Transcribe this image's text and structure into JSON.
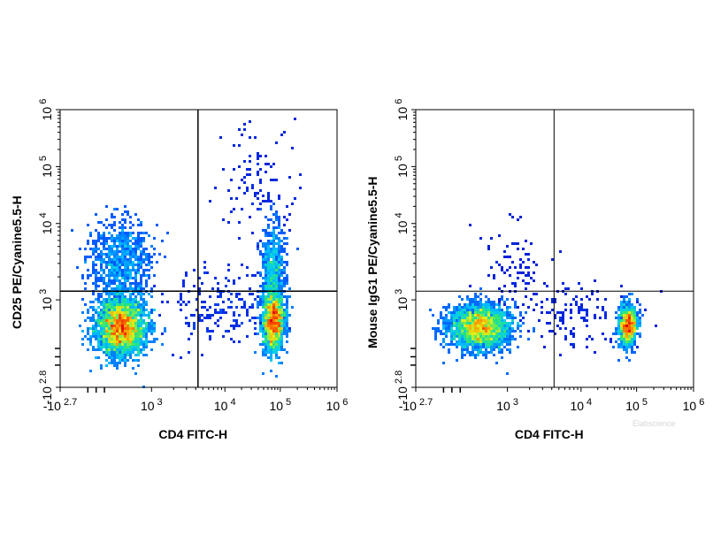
{
  "chart_data": [
    {
      "type": "scatter",
      "subtype": "flow-cytometry-density-plot",
      "xlabel": "CD4 FITC-H",
      "ylabel": "CD25 PE/Cyanine5.5-H",
      "x_scale": "biexponential",
      "y_scale": "biexponential",
      "xlim": [
        -500,
        1000000
      ],
      "ylim": [
        -630,
        1000000
      ],
      "x_ticks": [
        {
          "base": "-10",
          "exp": "2.7",
          "value": -500
        },
        {
          "base": "10",
          "exp": "3",
          "value": 1000
        },
        {
          "base": "10",
          "exp": "4",
          "value": 10000
        },
        {
          "base": "10",
          "exp": "5",
          "value": 100000
        },
        {
          "base": "10",
          "exp": "6",
          "value": 1000000
        }
      ],
      "y_ticks": [
        {
          "base": "-10",
          "exp": "2.8",
          "value": -630
        },
        {
          "base": "10",
          "exp": "3",
          "value": 1000
        },
        {
          "base": "10",
          "exp": "4",
          "value": 10000
        },
        {
          "base": "10",
          "exp": "5",
          "value": 100000
        },
        {
          "base": "10",
          "exp": "6",
          "value": 1000000
        }
      ],
      "quadrant_gate": {
        "x": 4300,
        "y": 1300
      },
      "populations": [
        {
          "x": 500,
          "y": 500,
          "spread_x": 0.25,
          "spread_y": 0.28,
          "count": 2600,
          "intensity": 1.0
        },
        {
          "x": 500,
          "y": 3000,
          "spread_x": 0.3,
          "spread_y": 0.45,
          "count": 900,
          "intensity": 0.55
        },
        {
          "x": 75000,
          "y": 600,
          "spread_x": 0.11,
          "spread_y": 0.3,
          "count": 1500,
          "intensity": 0.95
        },
        {
          "x": 75000,
          "y": 2500,
          "spread_x": 0.11,
          "spread_y": 0.45,
          "count": 700,
          "intensity": 0.55
        },
        {
          "x": 8000,
          "y": 900,
          "spread_x": 0.6,
          "spread_y": 0.35,
          "count": 220,
          "intensity": 0.12
        },
        {
          "x": 40000,
          "y": 60000,
          "spread_x": 0.4,
          "spread_y": 0.6,
          "count": 110,
          "intensity": 0.08
        }
      ],
      "grid": false
    },
    {
      "type": "scatter",
      "subtype": "flow-cytometry-density-plot",
      "xlabel": "CD4 FITC-H",
      "ylabel": "Mouse IgG1 PE/Cyanine5.5-H",
      "x_scale": "biexponential",
      "y_scale": "biexponential",
      "xlim": [
        -500,
        1000000
      ],
      "ylim": [
        -630,
        1000000
      ],
      "x_ticks": [
        {
          "base": "-10",
          "exp": "2.7",
          "value": -500
        },
        {
          "base": "10",
          "exp": "3",
          "value": 1000
        },
        {
          "base": "10",
          "exp": "4",
          "value": 10000
        },
        {
          "base": "10",
          "exp": "5",
          "value": 100000
        },
        {
          "base": "10",
          "exp": "6",
          "value": 1000000
        }
      ],
      "y_ticks": [
        {
          "base": "-10",
          "exp": "2.8",
          "value": -630
        },
        {
          "base": "10",
          "exp": "3",
          "value": 1000
        },
        {
          "base": "10",
          "exp": "4",
          "value": 10000
        },
        {
          "base": "10",
          "exp": "5",
          "value": 100000
        },
        {
          "base": "10",
          "exp": "6",
          "value": 1000000
        }
      ],
      "quadrant_gate": {
        "x": 4300,
        "y": 1300
      },
      "populations": [
        {
          "x": 550,
          "y": 500,
          "spread_x": 0.3,
          "spread_y": 0.22,
          "count": 2600,
          "intensity": 1.0
        },
        {
          "x": 70000,
          "y": 520,
          "spread_x": 0.09,
          "spread_y": 0.2,
          "count": 1300,
          "intensity": 0.9
        },
        {
          "x": 8000,
          "y": 700,
          "spread_x": 0.55,
          "spread_y": 0.3,
          "count": 140,
          "intensity": 0.1
        },
        {
          "x": 1200,
          "y": 2500,
          "spread_x": 0.35,
          "spread_y": 0.45,
          "count": 90,
          "intensity": 0.08
        }
      ],
      "grid": false
    }
  ],
  "watermark": "Elabscience"
}
